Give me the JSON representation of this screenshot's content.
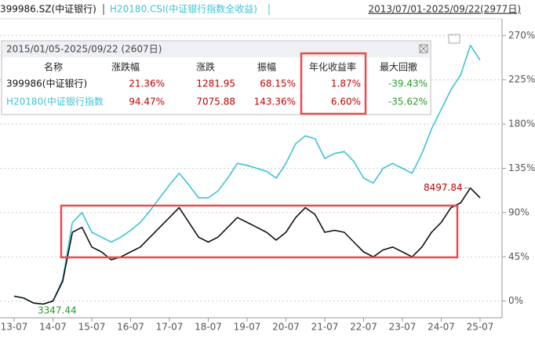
{
  "header": {
    "range": "2013/07/01-2025/09/22(2977日)"
  },
  "table": {
    "title": "2015/01/05-2025/09/22 (2607日)",
    "columns": [
      "名称",
      "涨跌幅",
      "涨跌",
      "振幅",
      "年化收益率",
      "最大回撤"
    ],
    "rows": [
      [
        "399986(中证银行)",
        "21.36%",
        "1281.95",
        "68.15%",
        "1.87%",
        "-39.43%"
      ],
      [
        "H20180(中证银行指数",
        "94.47%",
        "7075.88",
        "143.36%",
        "6.60%",
        "-35.62%"
      ]
    ]
  },
  "chart_data": {
    "type": "line",
    "categories": [
      "13-07",
      null,
      null,
      null,
      "14-07",
      null,
      null,
      null,
      "15-07",
      null,
      null,
      null,
      "16-07",
      null,
      null,
      null,
      "17-07",
      null,
      null,
      null,
      "18-07",
      null,
      null,
      null,
      "19-07",
      null,
      null,
      null,
      "20-07",
      null,
      null,
      null,
      "21-07",
      null,
      null,
      null,
      "22-07",
      null,
      null,
      null,
      "23-07",
      null,
      null,
      null,
      "24-07",
      null,
      null,
      null,
      "25-07"
    ],
    "series": [
      {
        "name": "399986.SZ(中证银行)",
        "color": "#111111",
        "values": [
          5,
          3,
          -2,
          -3,
          0,
          20,
          70,
          75,
          55,
          50,
          42,
          45,
          50,
          55,
          65,
          75,
          85,
          95,
          80,
          65,
          60,
          65,
          75,
          85,
          80,
          75,
          70,
          62,
          70,
          85,
          95,
          88,
          70,
          72,
          70,
          60,
          50,
          45,
          52,
          55,
          50,
          45,
          55,
          70,
          80,
          95,
          100,
          115,
          105
        ]
      },
      {
        "name": "H20180.CSI(中证银行指数全收益)",
        "color": "#3ec3d5",
        "values": [
          5,
          3,
          -2,
          -3,
          0,
          22,
          80,
          90,
          70,
          65,
          60,
          65,
          72,
          80,
          92,
          105,
          118,
          130,
          118,
          105,
          105,
          112,
          125,
          140,
          138,
          135,
          132,
          125,
          140,
          160,
          168,
          165,
          145,
          150,
          152,
          142,
          125,
          120,
          135,
          140,
          135,
          130,
          150,
          175,
          195,
          215,
          230,
          260,
          245
        ]
      }
    ],
    "ylim": [
      -17,
      287
    ],
    "yticks": [
      {
        "value": 0,
        "label": "0%"
      },
      {
        "value": 45,
        "label": "45%"
      },
      {
        "value": 90,
        "label": "90%"
      },
      {
        "value": 135,
        "label": "135%"
      },
      {
        "value": 180,
        "label": "180%"
      },
      {
        "value": 225,
        "label": "225%"
      },
      {
        "value": 270,
        "label": "270%"
      }
    ],
    "grid": true,
    "annotations": [
      {
        "text": "8497.84",
        "color": "#c00000"
      },
      {
        "text": "3347.44",
        "color": "#2a9a2a"
      }
    ]
  }
}
